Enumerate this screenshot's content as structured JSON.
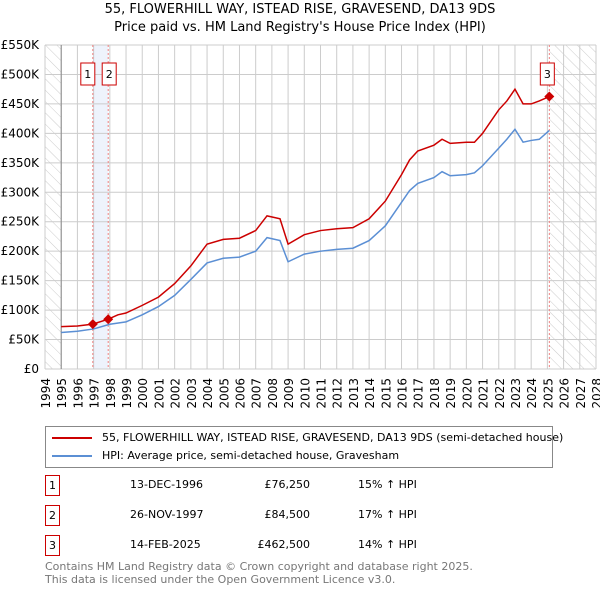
{
  "chart_data": {
    "type": "line",
    "title": "55, FLOWERHILL WAY, ISTEAD RISE, GRAVESEND, DA13 9DS",
    "subtitle": "Price paid vs. HM Land Registry's House Price Index (HPI)",
    "xlim": [
      1994,
      2028
    ],
    "ylim": [
      0,
      550000
    ],
    "x_ticks": [
      1994,
      1995,
      1996,
      1997,
      1998,
      1999,
      2000,
      2001,
      2002,
      2003,
      2004,
      2005,
      2006,
      2007,
      2008,
      2009,
      2010,
      2011,
      2012,
      2013,
      2014,
      2015,
      2016,
      2017,
      2018,
      2019,
      2020,
      2021,
      2022,
      2023,
      2024,
      2025,
      2026,
      2027,
      2028
    ],
    "y_ticks": [
      0,
      50000,
      100000,
      150000,
      200000,
      250000,
      300000,
      350000,
      400000,
      450000,
      500000,
      550000
    ],
    "y_tick_labels": [
      "£0",
      "£50K",
      "£100K",
      "£150K",
      "£200K",
      "£250K",
      "£300K",
      "£350K",
      "£400K",
      "£450K",
      "£500K",
      "£550K"
    ],
    "grid": true,
    "colors": {
      "property": "#cc0000",
      "hpi": "#5b8fd4"
    },
    "series": [
      {
        "name": "55, FLOWERHILL WAY, ISTEAD RISE, GRAVESEND, DA13 9DS (semi-detached house)",
        "x": [
          1995,
          1996,
          1996.95,
          1997.9,
          1998.5,
          1999,
          2000,
          2001,
          2002,
          2003,
          2004,
          2005,
          2006,
          2007,
          2007.7,
          2008.5,
          2009,
          2010,
          2011,
          2012,
          2013,
          2014,
          2015,
          2016,
          2016.5,
          2017,
          2018,
          2018.5,
          2019,
          2020,
          2020.5,
          2021,
          2022,
          2022.5,
          2023,
          2023.5,
          2024,
          2024.5,
          2025.12
        ],
        "y": [
          72000,
          73000,
          76250,
          84500,
          92000,
          95000,
          108000,
          122000,
          145000,
          175000,
          212000,
          220000,
          222000,
          235000,
          260000,
          255000,
          212000,
          228000,
          235000,
          238000,
          240000,
          255000,
          285000,
          330000,
          355000,
          370000,
          380000,
          390000,
          383000,
          385000,
          385000,
          400000,
          440000,
          455000,
          475000,
          450000,
          450000,
          455000,
          462500
        ]
      },
      {
        "name": "HPI: Average price, semi-detached house, Gravesham",
        "x": [
          1995,
          1996,
          1997,
          1998,
          1999,
          2000,
          2001,
          2002,
          2003,
          2004,
          2005,
          2006,
          2007,
          2007.7,
          2008.5,
          2009,
          2010,
          2011,
          2012,
          2013,
          2014,
          2015,
          2016,
          2016.5,
          2017,
          2018,
          2018.5,
          2019,
          2020,
          2020.5,
          2021,
          2022,
          2022.5,
          2023,
          2023.5,
          2024,
          2024.5,
          2025.12
        ],
        "y": [
          62000,
          64000,
          68000,
          76000,
          80000,
          92000,
          106000,
          125000,
          152000,
          180000,
          188000,
          190000,
          200000,
          223000,
          218000,
          182000,
          195000,
          200000,
          203000,
          205000,
          218000,
          243000,
          283000,
          303000,
          315000,
          325000,
          335000,
          328000,
          330000,
          333000,
          345000,
          375000,
          390000,
          407000,
          385000,
          388000,
          390000,
          405000
        ]
      }
    ],
    "sales": [
      {
        "label": "1",
        "x": 1996.95,
        "price": 76250,
        "date": "13-DEC-1996",
        "price_text": "£76,250",
        "hpi": "15% ↑ HPI"
      },
      {
        "label": "2",
        "x": 1997.9,
        "price": 84500,
        "date": "26-NOV-1997",
        "price_text": "£84,500",
        "hpi": "17% ↑ HPI"
      },
      {
        "label": "3",
        "x": 2025.12,
        "price": 462500,
        "date": "14-FEB-2025",
        "price_text": "£462,500",
        "hpi": "14% ↑ HPI"
      }
    ],
    "legend_position": "bottom"
  },
  "footer": {
    "line1": "Contains HM Land Registry data © Crown copyright and database right 2025.",
    "line2": "This data is licensed under the Open Government Licence v3.0."
  }
}
